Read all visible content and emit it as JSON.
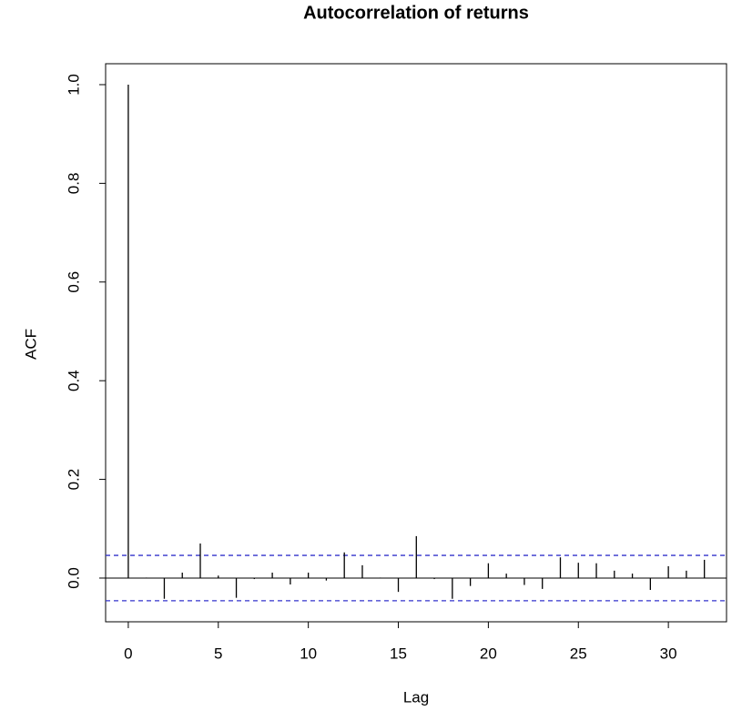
{
  "chart_data": {
    "type": "acf",
    "title": "Autocorrelation of returns",
    "x_label": "Lag",
    "y_label": "ACF",
    "x": [
      0,
      1,
      2,
      3,
      4,
      5,
      6,
      7,
      8,
      9,
      10,
      11,
      12,
      13,
      14,
      15,
      16,
      17,
      18,
      19,
      20,
      21,
      22,
      23,
      24,
      25,
      26,
      27,
      28,
      29,
      30,
      31,
      32
    ],
    "values": [
      1.0,
      0.001,
      -0.042,
      0.011,
      0.07,
      0.005,
      -0.04,
      -0.002,
      0.011,
      -0.013,
      0.011,
      -0.005,
      0.052,
      0.026,
      0.001,
      -0.028,
      0.085,
      -0.002,
      -0.042,
      -0.016,
      0.03,
      0.009,
      -0.014,
      -0.022,
      0.042,
      0.031,
      0.03,
      0.015,
      0.009,
      -0.024,
      0.024,
      0.015,
      0.037
    ],
    "color": "#000000",
    "confidence_bounds": [
      0.046,
      -0.046
    ],
    "bound_color": "#3333cc",
    "xlim": [
      -1.26,
      33.23
    ],
    "ylim": [
      -0.0886,
      1.0424
    ],
    "xticks": [
      0,
      5,
      10,
      15,
      20,
      25,
      30
    ],
    "yticks": [
      {
        "value": 0,
        "label": "0.0"
      },
      0.2,
      0.4,
      0.6,
      0.8,
      {
        "value": 1,
        "label": "1.0"
      }
    ]
  }
}
